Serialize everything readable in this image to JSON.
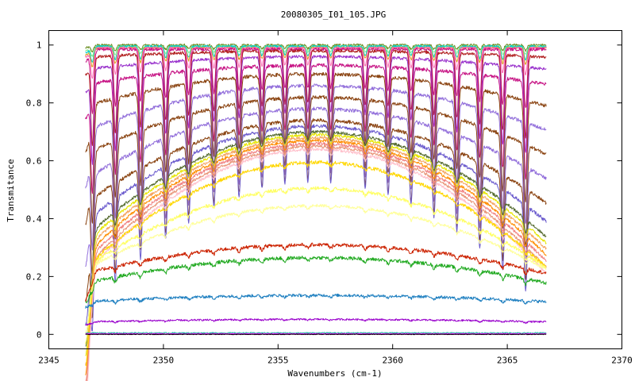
{
  "chart_data": {
    "type": "line",
    "title": "20080305_I01_105.JPG",
    "xlabel": "Wavenumbers (cm-1)",
    "ylabel": "Transmitance",
    "xlim": [
      2345,
      2370
    ],
    "ylim": [
      -0.05,
      1.05
    ],
    "xticks": [
      "2345",
      "2350",
      "2355",
      "2360",
      "2365",
      "2370"
    ],
    "yticks": [
      "0",
      "0.2",
      "0.4",
      "0.6",
      "0.8",
      "1"
    ],
    "grid": false,
    "legend": "none",
    "x_range_of_data": [
      2346.6,
      2366.7
    ],
    "absorption_line_centers": [
      2346.9,
      2347.9,
      2349.0,
      2350.1,
      2351.1,
      2352.2,
      2353.3,
      2354.3,
      2355.3,
      2356.3,
      2357.3,
      2358.8,
      2359.8,
      2360.8,
      2361.8,
      2362.8,
      2363.8,
      2364.8,
      2365.8
    ],
    "series": [
      {
        "color": "#6b8e23",
        "baseline": 1.0,
        "depth": 0.02,
        "dip": 0.01,
        "band": 0,
        "noise": 0.004
      },
      {
        "color": "#90ee90",
        "baseline": 0.995,
        "depth": 0.03,
        "dip": 0.015,
        "band": 0,
        "noise": 0.004
      },
      {
        "color": "#00ced1",
        "baseline": 0.995,
        "depth": 0.05,
        "dip": 0.02,
        "band": 0,
        "noise": 0.004
      },
      {
        "color": "#daa520",
        "baseline": 0.99,
        "depth": 0.06,
        "dip": 0.025,
        "band": 0,
        "noise": 0.004
      },
      {
        "color": "#ff69b4",
        "baseline": 0.99,
        "depth": 0.1,
        "dip": 0.03,
        "band": 0,
        "noise": 0.004
      },
      {
        "color": "#c71585",
        "baseline": 0.985,
        "depth": 0.22,
        "dip": 0.04,
        "band": 0,
        "noise": 0.005
      },
      {
        "color": "#b22222",
        "baseline": 0.98,
        "depth": 0.3,
        "dip": 0.06,
        "band": 0.02,
        "noise": 0.005
      },
      {
        "color": "#9932cc",
        "baseline": 0.96,
        "depth": 0.32,
        "dip": 0.08,
        "band": 0.04,
        "noise": 0.005
      },
      {
        "color": "#c71585",
        "baseline": 0.93,
        "depth": 0.36,
        "dip": 0.12,
        "band": 0.06,
        "noise": 0.006
      },
      {
        "color": "#8b4513",
        "baseline": 0.9,
        "depth": 0.38,
        "dip": 0.16,
        "band": 0.1,
        "noise": 0.006
      },
      {
        "color": "#9370db",
        "baseline": 0.86,
        "depth": 0.38,
        "dip": 0.2,
        "band": 0.14,
        "noise": 0.006
      },
      {
        "color": "#8b4513",
        "baseline": 0.82,
        "depth": 0.38,
        "dip": 0.24,
        "band": 0.18,
        "noise": 0.006
      },
      {
        "color": "#9370db",
        "baseline": 0.78,
        "depth": 0.36,
        "dip": 0.3,
        "band": 0.22,
        "noise": 0.006
      },
      {
        "color": "#8b4513",
        "baseline": 0.74,
        "depth": 0.34,
        "dip": 0.34,
        "band": 0.26,
        "noise": 0.006
      },
      {
        "color": "#6a5acd",
        "baseline": 0.72,
        "depth": 0.32,
        "dip": 0.36,
        "band": 0.3,
        "noise": 0.006
      },
      {
        "color": "#556b2f",
        "baseline": 0.7,
        "depth": 0.05,
        "dip": 0.38,
        "band": 0.33,
        "noise": 0.005
      },
      {
        "color": "#e6e600",
        "baseline": 0.69,
        "depth": 0.05,
        "dip": 0.39,
        "band": 0.34,
        "noise": 0.005
      },
      {
        "color": "#f4a460",
        "baseline": 0.68,
        "depth": 0.04,
        "dip": 0.4,
        "band": 0.35,
        "noise": 0.005
      },
      {
        "color": "#ff8c00",
        "baseline": 0.67,
        "depth": 0.04,
        "dip": 0.41,
        "band": 0.36,
        "noise": 0.005
      },
      {
        "color": "#f08080",
        "baseline": 0.66,
        "depth": 0.04,
        "dip": 0.42,
        "band": 0.37,
        "noise": 0.005
      },
      {
        "color": "#e9967a",
        "baseline": 0.65,
        "depth": 0.03,
        "dip": 0.43,
        "band": 0.38,
        "noise": 0.005
      },
      {
        "color": "#ffc0cb",
        "baseline": 0.64,
        "depth": 0.03,
        "dip": 0.44,
        "band": 0.39,
        "noise": 0.005
      },
      {
        "color": "#ffd700",
        "baseline": 0.595,
        "depth": 0.02,
        "dip": 0.34,
        "band": 0.33,
        "noise": 0.006
      },
      {
        "color": "#ffff66",
        "baseline": 0.505,
        "depth": 0.02,
        "dip": 0.26,
        "band": 0.25,
        "noise": 0.006
      },
      {
        "color": "#ffff99",
        "baseline": 0.445,
        "depth": 0.02,
        "dip": 0.22,
        "band": 0.2,
        "noise": 0.005
      },
      {
        "color": "#cc2200",
        "baseline": 0.31,
        "depth": 0.02,
        "dip": 0.09,
        "band": 0.09,
        "noise": 0.006
      },
      {
        "color": "#22aa22",
        "baseline": 0.265,
        "depth": 0.02,
        "dip": 0.07,
        "band": 0.08,
        "noise": 0.006
      },
      {
        "color": "#1e7fc0",
        "baseline": 0.135,
        "depth": 0.01,
        "dip": 0.02,
        "band": 0.02,
        "noise": 0.005
      },
      {
        "color": "#9900cc",
        "baseline": 0.052,
        "depth": 0.005,
        "dip": 0.01,
        "band": 0.008,
        "noise": 0.003
      },
      {
        "color": "#20b2aa",
        "baseline": 0.005,
        "depth": 0.0,
        "dip": 0.0,
        "band": 0.0,
        "noise": 0.002
      },
      {
        "color": "#ff00ff",
        "baseline": 0.002,
        "depth": 0.0,
        "dip": 0.0,
        "band": 0.0,
        "noise": 0.001
      },
      {
        "color": "#000000",
        "baseline": 0.0,
        "depth": 0.0,
        "dip": 0.0,
        "band": 0.0,
        "noise": 0.001
      }
    ]
  }
}
